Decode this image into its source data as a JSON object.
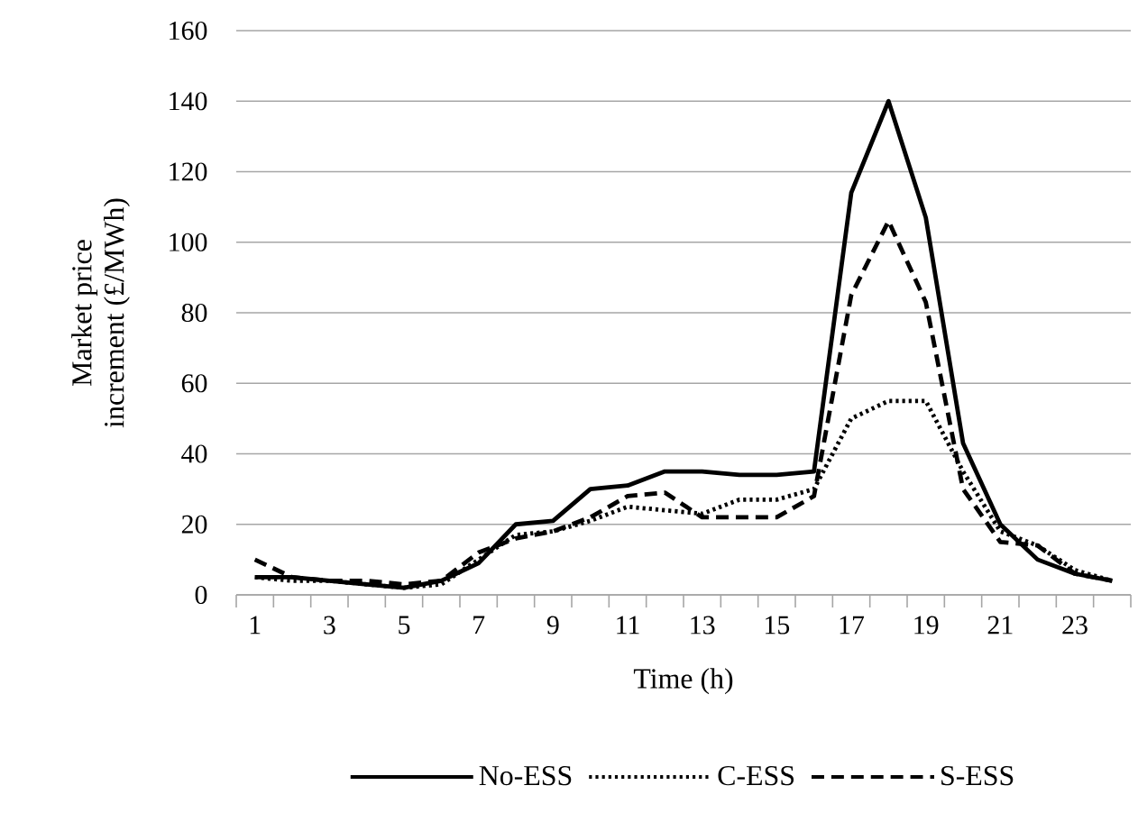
{
  "chart_data": {
    "type": "line",
    "xlabel": "Time (h)",
    "ylabel": "Market price increment (£/MWh)",
    "categories": [
      "1",
      null,
      "3",
      null,
      "5",
      null,
      "7",
      null,
      "9",
      null,
      "11",
      null,
      "13",
      null,
      "15",
      null,
      "17",
      null,
      "19",
      null,
      "21",
      null,
      "23",
      null
    ],
    "series": [
      {
        "name": "No-ESS",
        "color": "#000000",
        "line_style": "solid",
        "values": [
          5,
          5,
          4,
          3,
          2,
          4,
          9,
          20,
          21,
          30,
          31,
          35,
          35,
          34,
          34,
          35,
          114,
          140,
          107,
          43,
          20,
          10,
          6,
          4
        ]
      },
      {
        "name": "C-ESS",
        "color": "#000000",
        "line_style": "dotted",
        "values": [
          5,
          4,
          4,
          3,
          2,
          3,
          10,
          17,
          18,
          21,
          25,
          24,
          23,
          27,
          27,
          30,
          50,
          55,
          55,
          35,
          18,
          14,
          7,
          4
        ]
      },
      {
        "name": "S-ESS",
        "color": "#000000",
        "line_style": "dashed",
        "values": [
          10,
          5,
          4,
          4,
          3,
          4,
          12,
          16,
          18,
          22,
          28,
          29,
          22,
          22,
          22,
          28,
          85,
          106,
          83,
          30,
          15,
          14,
          6,
          4
        ]
      }
    ],
    "ylim": [
      0,
      160
    ],
    "yticks": [
      0,
      20,
      40,
      60,
      80,
      100,
      120,
      140,
      160
    ],
    "grid": "y",
    "legend": "bottom",
    "marker": "none"
  }
}
